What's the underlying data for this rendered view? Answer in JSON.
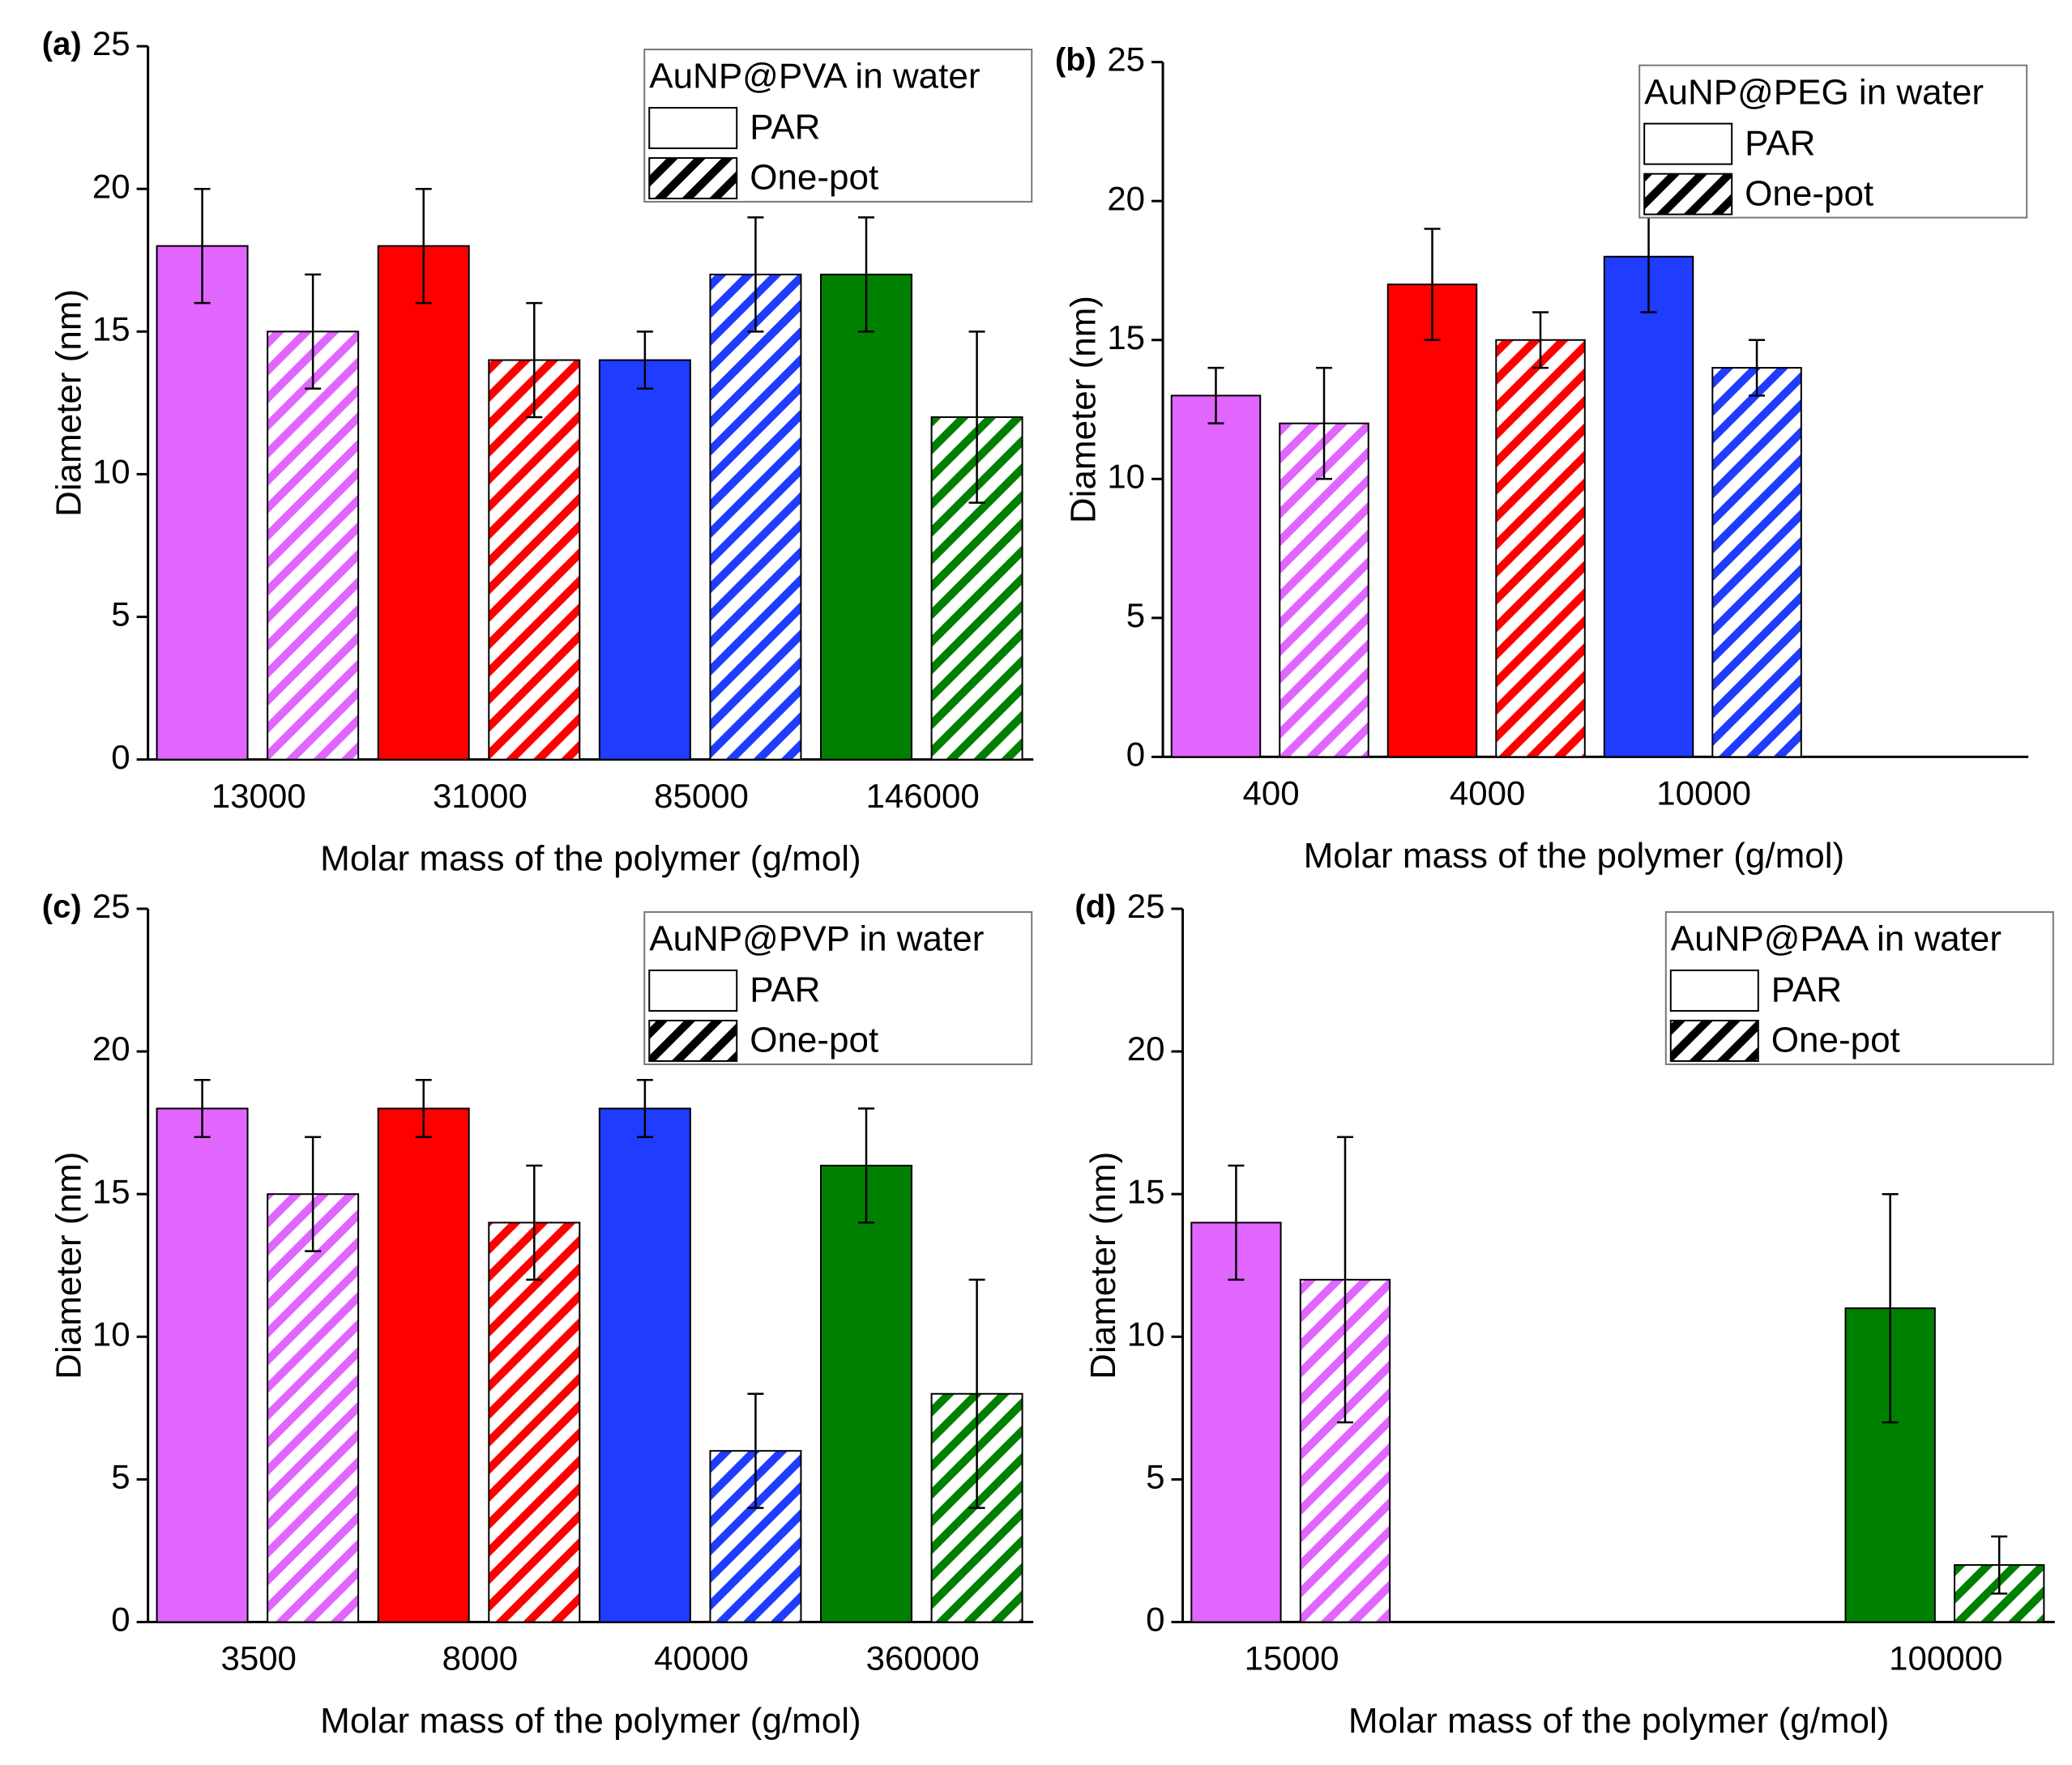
{
  "chart_data": [
    {
      "type": "bar",
      "panel": "(a)",
      "ylabel": "Diameter (nm)",
      "xlabel": "Molar mass of the polymer (g/mol)",
      "categories": [
        "13000",
        "31000",
        "85000",
        "146000"
      ],
      "colors": [
        "#e066ff",
        "#ff0000",
        "#1f3cff",
        "#008000"
      ],
      "legend_title": "AuNP@PVA in water",
      "legend": "upper right",
      "ylim": [
        0,
        25
      ],
      "yticks": [
        0,
        5,
        10,
        15,
        20,
        25
      ],
      "series": [
        {
          "name": "PAR",
          "pattern": "solid",
          "values": [
            18,
            18,
            14,
            17
          ],
          "errors": [
            2,
            2,
            1,
            2
          ]
        },
        {
          "name": "One-pot",
          "pattern": "hatched",
          "values": [
            15,
            14,
            17,
            12
          ],
          "errors": [
            2,
            2,
            2,
            3
          ]
        }
      ]
    },
    {
      "type": "bar",
      "panel": "(b)",
      "ylabel": "Diameter (nm)",
      "xlabel": "Molar mass of the polymer (g/mol)",
      "categories": [
        "400",
        "4000",
        "10000",
        null
      ],
      "colors": [
        "#e066ff",
        "#ff0000",
        "#1f3cff",
        "#008000"
      ],
      "legend_title": "AuNP@PEG in water",
      "legend": "upper right",
      "ylim": [
        0,
        25
      ],
      "yticks": [
        0,
        5,
        10,
        15,
        20,
        25
      ],
      "series": [
        {
          "name": "PAR",
          "pattern": "solid",
          "values": [
            13,
            17,
            18,
            null
          ],
          "errors": [
            1,
            2,
            2,
            null
          ]
        },
        {
          "name": "One-pot",
          "pattern": "hatched",
          "values": [
            12,
            15,
            14,
            null
          ],
          "errors": [
            2,
            1,
            1,
            null
          ]
        }
      ]
    },
    {
      "type": "bar",
      "panel": "(c)",
      "ylabel": "Diameter (nm)",
      "xlabel": "Molar mass of the polymer (g/mol)",
      "categories": [
        "3500",
        "8000",
        "40000",
        "360000"
      ],
      "colors": [
        "#e066ff",
        "#ff0000",
        "#1f3cff",
        "#008000"
      ],
      "legend_title": "AuNP@PVP in water",
      "legend": "upper right",
      "ylim": [
        0,
        25
      ],
      "yticks": [
        0,
        5,
        10,
        15,
        20,
        25
      ],
      "series": [
        {
          "name": "PAR",
          "pattern": "solid",
          "values": [
            18,
            18,
            18,
            16
          ],
          "errors": [
            1,
            1,
            1,
            2
          ]
        },
        {
          "name": "One-pot",
          "pattern": "hatched",
          "values": [
            15,
            14,
            6,
            8
          ],
          "errors": [
            2,
            2,
            2,
            4
          ]
        }
      ]
    },
    {
      "type": "bar",
      "panel": "(d)",
      "ylabel": "Diameter (nm)",
      "xlabel": "Molar mass of the polymer (g/mol)",
      "categories": [
        "15000",
        null,
        null,
        "100000"
      ],
      "colors": [
        "#e066ff",
        "#ff0000",
        "#1f3cff",
        "#008000"
      ],
      "legend_title": "AuNP@PAA in water",
      "legend": "upper right",
      "ylim": [
        0,
        25
      ],
      "yticks": [
        0,
        5,
        10,
        15,
        20,
        25
      ],
      "series": [
        {
          "name": "PAR",
          "pattern": "solid",
          "values": [
            14,
            null,
            null,
            11
          ],
          "errors": [
            2,
            null,
            null,
            4
          ]
        },
        {
          "name": "One-pot",
          "pattern": "hatched",
          "values": [
            12,
            null,
            null,
            2
          ],
          "errors": [
            5,
            null,
            null,
            1
          ]
        }
      ]
    }
  ]
}
